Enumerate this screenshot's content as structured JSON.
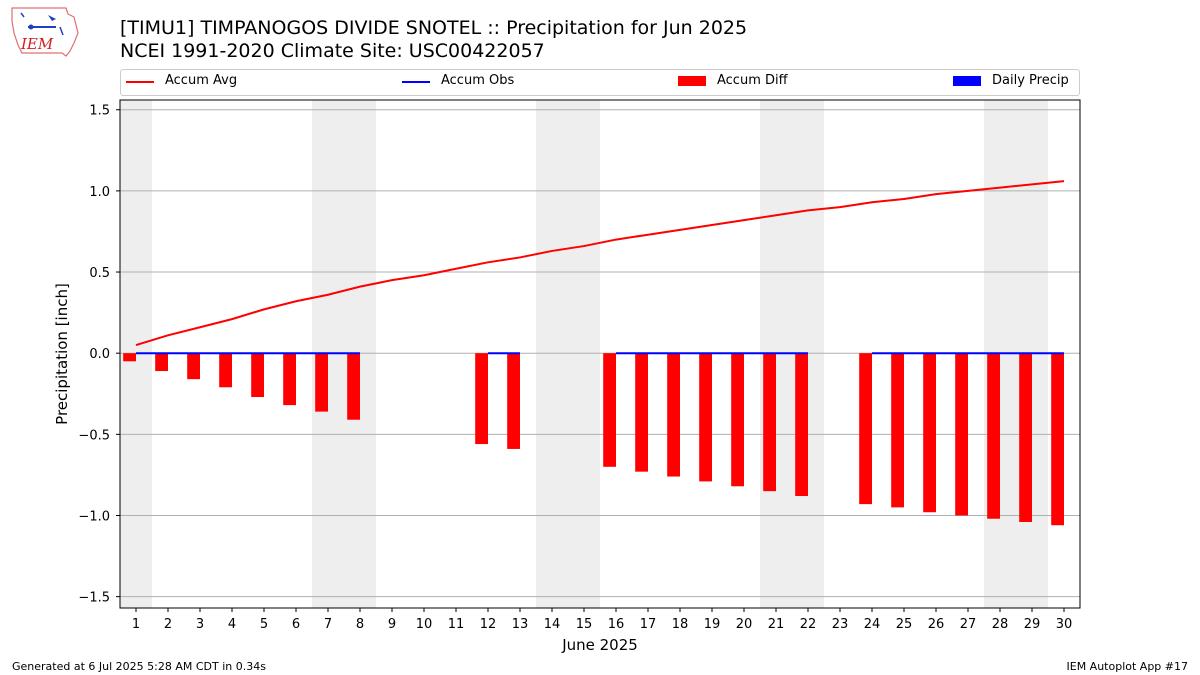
{
  "header": {
    "title_line1": "[TIMU1] TIMPANOGOS DIVIDE SNOTEL :: Precipitation for Jun 2025",
    "title_line2": "NCEI 1991-2020 Climate Site: USC00422057",
    "logo_text": "IEM"
  },
  "legend": [
    {
      "label": "Accum Avg",
      "color": "#ff0000",
      "kind": "line"
    },
    {
      "label": "Accum Obs",
      "color": "#0000ff",
      "kind": "line"
    },
    {
      "label": "Accum Diff",
      "color": "#ff0000",
      "kind": "patch"
    },
    {
      "label": "Daily Precip",
      "color": "#0000ff",
      "kind": "patch"
    }
  ],
  "footer": {
    "left": "Generated at 6 Jul 2025 5:28 AM CDT in 0.34s",
    "right": "IEM Autoplot App #17"
  },
  "chart_data": {
    "type": "bar",
    "title": "[TIMU1] TIMPANOGOS DIVIDE SNOTEL :: Precipitation for Jun 2025",
    "subtitle": "NCEI 1991-2020 Climate Site: USC00422057",
    "xlabel": "June 2025",
    "ylabel": "Precipitation [inch]",
    "ylim": [
      -1.57,
      1.56
    ],
    "yticks": [
      -1.5,
      -1.0,
      -0.5,
      0.0,
      0.5,
      1.0,
      1.5
    ],
    "ytick_labels": [
      "−1.5",
      "−1.0",
      "−0.5",
      "0.0",
      "0.5",
      "1.0",
      "1.5"
    ],
    "days": [
      1,
      2,
      3,
      4,
      5,
      6,
      7,
      8,
      9,
      10,
      11,
      12,
      13,
      14,
      15,
      16,
      17,
      18,
      19,
      20,
      21,
      22,
      23,
      24,
      25,
      26,
      27,
      28,
      29,
      30
    ],
    "weekend_days": [
      1,
      7,
      8,
      14,
      15,
      21,
      22,
      28,
      29
    ],
    "grid": true,
    "legend_position": "top",
    "series": [
      {
        "name": "Accum Avg",
        "kind": "line",
        "color": "#ff0000",
        "values": [
          0.05,
          0.11,
          0.16,
          0.21,
          0.27,
          0.32,
          0.36,
          0.41,
          0.45,
          0.48,
          0.52,
          0.56,
          0.59,
          0.63,
          0.66,
          0.7,
          0.73,
          0.76,
          0.79,
          0.82,
          0.85,
          0.88,
          0.9,
          0.93,
          0.95,
          0.98,
          1.0,
          1.02,
          1.04,
          1.06
        ]
      },
      {
        "name": "Accum Obs",
        "kind": "line",
        "color": "#0000ff",
        "values": [
          0,
          0,
          0,
          0,
          0,
          0,
          0,
          0,
          null,
          null,
          null,
          0,
          0,
          null,
          null,
          0,
          0,
          0,
          0,
          0,
          0,
          0,
          null,
          0,
          0,
          0,
          0,
          0,
          0,
          0
        ]
      },
      {
        "name": "Accum Diff",
        "kind": "bar",
        "color": "#ff0000",
        "values": [
          -0.05,
          -0.11,
          -0.16,
          -0.21,
          -0.27,
          -0.32,
          -0.36,
          -0.41,
          null,
          null,
          null,
          -0.56,
          -0.59,
          null,
          null,
          -0.7,
          -0.73,
          -0.76,
          -0.79,
          -0.82,
          -0.85,
          -0.88,
          null,
          -0.93,
          -0.95,
          -0.98,
          -1.0,
          -1.02,
          -1.04,
          -1.06
        ]
      },
      {
        "name": "Daily Precip",
        "kind": "bar",
        "color": "#0000ff",
        "values": [
          0,
          0,
          0,
          0,
          0,
          0,
          0,
          0,
          null,
          null,
          null,
          0,
          0,
          null,
          null,
          0,
          0,
          0,
          0,
          0,
          0,
          0,
          null,
          0,
          0,
          0,
          0,
          0,
          0,
          0
        ]
      }
    ]
  }
}
